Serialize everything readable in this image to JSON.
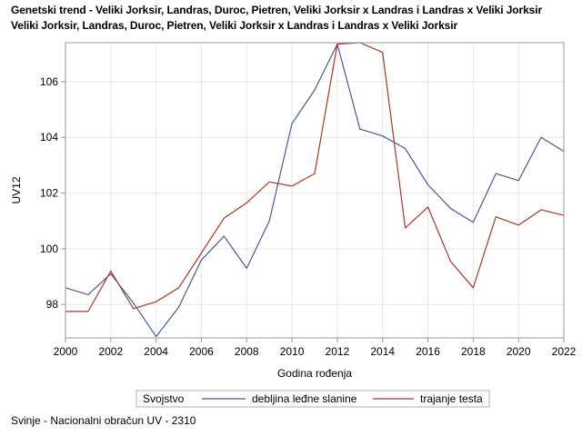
{
  "title_lines": [
    "Genetski trend - Veliki Jorksir, Landras, Duroc, Pietren, Veliki Jorksir x Landras i Landras x Veliki Jorksir",
    "Veliki Jorksir, Landras, Duroc, Pietren, Veliki Jorksir x Landras i Landras x Veliki Jorksir"
  ],
  "footer": "Svinje - Nacionalni obračun UV - 2310",
  "colors": {
    "series1": "#4a5a8c",
    "series2": "#a0392e",
    "grid": "#e6e6e6",
    "axis": "#9a9a9a"
  },
  "chart_data": {
    "type": "line",
    "xlabel": "Godina rođenja",
    "ylabel": "UV12",
    "xlim": [
      2000,
      2022
    ],
    "ylim": [
      96.8,
      107.4
    ],
    "xticks": [
      2000,
      2002,
      2004,
      2006,
      2008,
      2010,
      2012,
      2014,
      2016,
      2018,
      2020,
      2022
    ],
    "yticks": [
      98,
      100,
      102,
      104,
      106
    ],
    "grid": true,
    "legend": {
      "title": "Svojstvo",
      "position": "bottom"
    },
    "x": [
      2000,
      2001,
      2002,
      2003,
      2004,
      2005,
      2006,
      2007,
      2008,
      2009,
      2010,
      2011,
      2012,
      2013,
      2014,
      2015,
      2016,
      2017,
      2018,
      2019,
      2020,
      2021,
      2022
    ],
    "series": [
      {
        "name": "debljina leđne slanine",
        "values": [
          98.6,
          98.35,
          99.1,
          98.05,
          96.85,
          97.9,
          99.6,
          100.45,
          99.3,
          101.0,
          104.5,
          105.7,
          107.35,
          104.3,
          104.05,
          103.6,
          102.3,
          101.45,
          100.95,
          102.7,
          102.45,
          104.0,
          103.5
        ]
      },
      {
        "name": "trajanje testa",
        "values": [
          97.75,
          97.75,
          99.2,
          97.85,
          98.1,
          98.6,
          99.85,
          101.1,
          101.65,
          102.4,
          102.25,
          102.7,
          107.35,
          107.4,
          107.05,
          100.75,
          101.5,
          99.55,
          98.6,
          101.15,
          100.85,
          101.4,
          101.2
        ]
      }
    ]
  }
}
